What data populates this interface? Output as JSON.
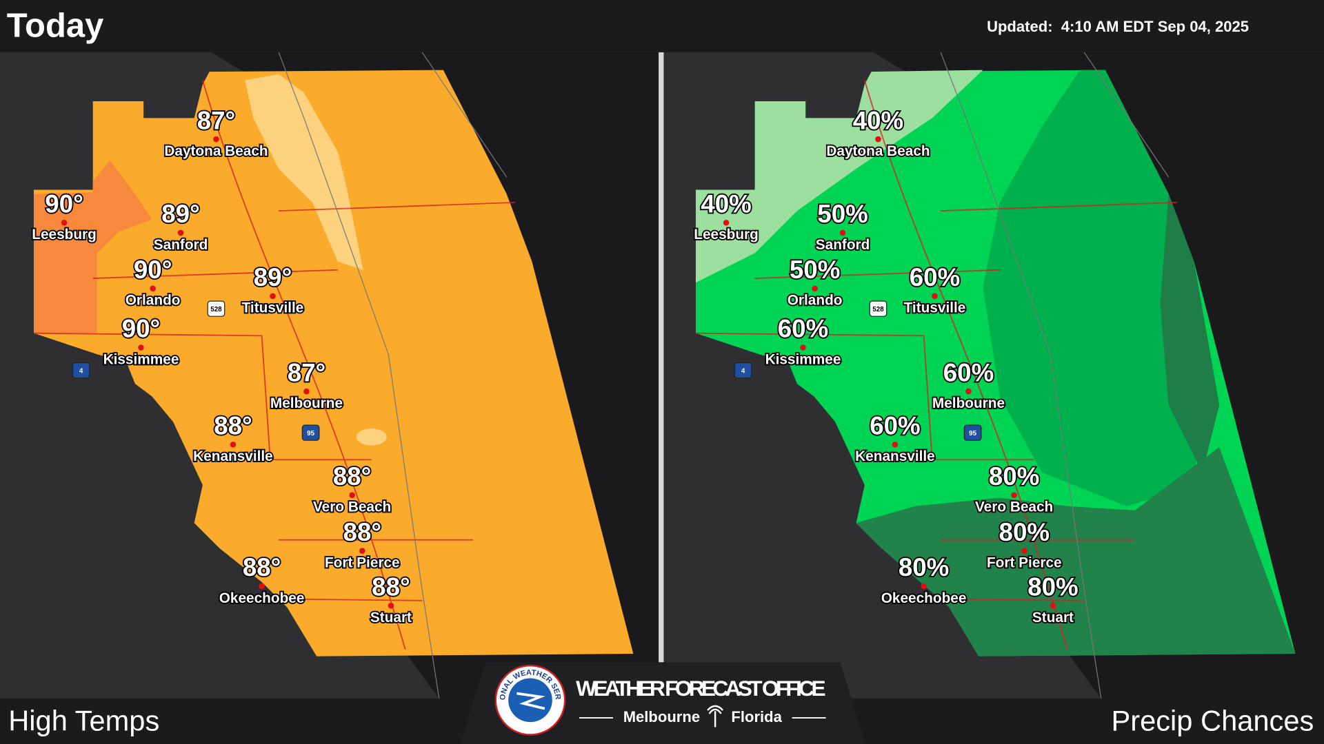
{
  "header": {
    "title": "Today",
    "updated": "Updated:  4:10 AM EDT Sep 04, 2025"
  },
  "cities": [
    "Daytona Beach",
    "Leesburg",
    "Sanford",
    "Orlando",
    "Titusville",
    "Kissimmee",
    "Melbourne",
    "Kenansville",
    "Vero Beach",
    "Fort Pierce",
    "Okeechobee",
    "Stuart"
  ],
  "panels": [
    {
      "label": "High Temps",
      "values": [
        "87°",
        "90°",
        "89°",
        "90°",
        "89°",
        "90°",
        "87°",
        "88°",
        "88°",
        "88°",
        "88°",
        "88°"
      ]
    },
    {
      "label": "Precip Chances",
      "values": [
        "40%",
        "40%",
        "50%",
        "50%",
        "60%",
        "60%",
        "60%",
        "60%",
        "80%",
        "80%",
        "80%",
        "80%"
      ]
    }
  ],
  "shields": [
    "528",
    "4",
    "95"
  ],
  "footer": {
    "office": "WEATHER FORECAST OFFICE",
    "city": "Melbourne",
    "state": "Florida",
    "seal": "NATIONAL WEATHER SERVICE"
  }
}
